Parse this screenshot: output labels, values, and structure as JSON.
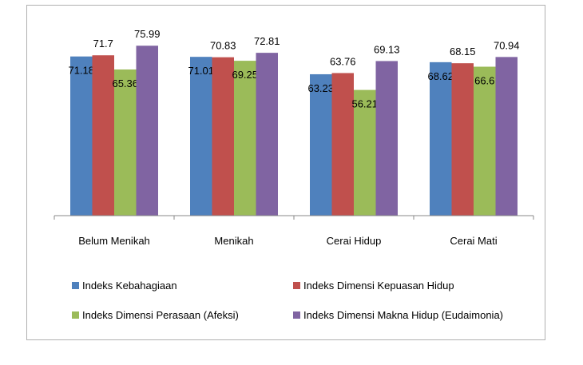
{
  "chart_data": {
    "type": "bar",
    "title": "",
    "xlabel": "",
    "ylabel": "",
    "categories": [
      "Belum Menikah",
      "Menikah",
      "Cerai Hidup",
      "Cerai Mati"
    ],
    "ylim": [
      0,
      80
    ],
    "grid": false,
    "legend_position": "bottom",
    "colors": [
      "#4f81bd",
      "#c0504d",
      "#9bbb59",
      "#8064a2"
    ],
    "series": [
      {
        "name": "Indeks Kebahagiaan",
        "values": [
          71.18,
          71.01,
          63.23,
          68.62
        ],
        "labels": [
          "71.18",
          "71.01",
          "63.23",
          "68.62"
        ]
      },
      {
        "name": "Indeks Dimensi Kepuasan Hidup",
        "values": [
          71.7,
          70.83,
          63.76,
          68.15
        ],
        "labels": [
          "71.7",
          "70.83",
          "63.76",
          "68.15"
        ]
      },
      {
        "name": "Indeks Dimensi Perasaan (Afeksi)",
        "values": [
          65.36,
          69.25,
          56.21,
          66.6
        ],
        "labels": [
          "65.36",
          "69.25",
          "56.21",
          "66.6"
        ]
      },
      {
        "name": "Indeks Dimensi Makna Hidup (Eudaimonia)",
        "values": [
          75.99,
          72.81,
          69.13,
          70.94
        ],
        "labels": [
          "75.99",
          "72.81",
          "69.13",
          "70.94"
        ]
      }
    ]
  }
}
